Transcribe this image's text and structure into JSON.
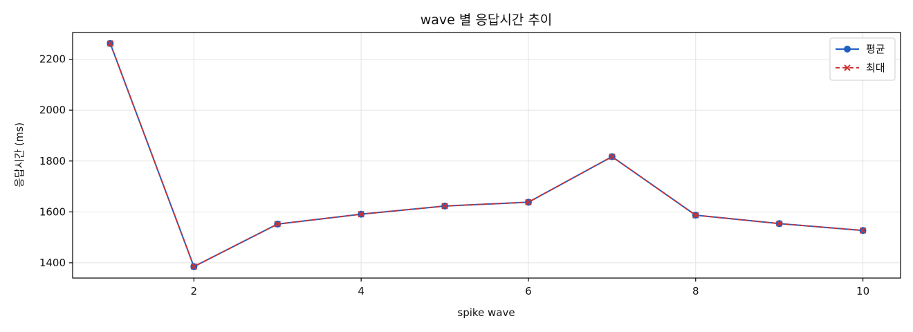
{
  "chart_data": {
    "type": "line",
    "title": "wave 별 응답시간 추이",
    "xlabel": "spike wave",
    "ylabel": "응답시간 (ms)",
    "x": [
      1,
      2,
      3,
      4,
      5,
      6,
      7,
      8,
      9,
      10
    ],
    "xlim": [
      0.55,
      10.45
    ],
    "ylim": [
      1340,
      2305
    ],
    "xticks": [
      2,
      4,
      6,
      8,
      10
    ],
    "yticks": [
      1400,
      1600,
      1800,
      2000,
      2200
    ],
    "grid": true,
    "legend_position": "top-right",
    "series": [
      {
        "name": "평균",
        "color": "#1f5fbf",
        "line_style": "solid",
        "marker": "circle",
        "values": [
          2262,
          1385,
          1552,
          1591,
          1623,
          1638,
          1817,
          1587,
          1554,
          1527
        ]
      },
      {
        "name": "최대",
        "color": "#cc3333",
        "line_style": "dashed",
        "marker": "x",
        "values": [
          2262,
          1385,
          1552,
          1591,
          1623,
          1638,
          1817,
          1587,
          1554,
          1527
        ]
      }
    ]
  }
}
